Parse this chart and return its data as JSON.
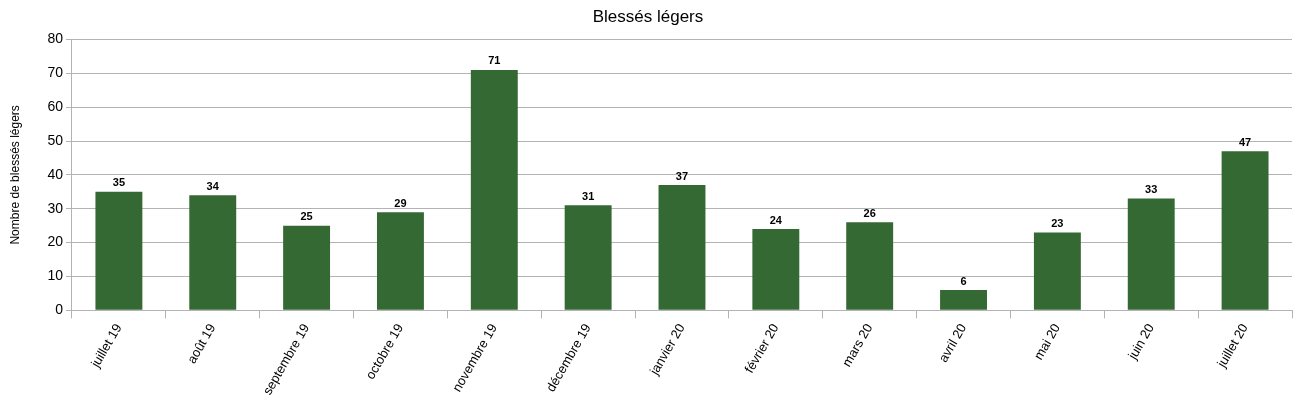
{
  "chart_data": {
    "type": "bar",
    "title": "Blessés légers",
    "ylabel": "Nombre de blessés légers",
    "categories": [
      "juillet 19",
      "août 19",
      "septembre 19",
      "octobre 19",
      "novembre 19",
      "décembre 19",
      "janvier 20",
      "février 20",
      "mars 20",
      "avril 20",
      "mai 20",
      "juin 20",
      "juillet 20"
    ],
    "values": [
      35,
      34,
      25,
      29,
      71,
      31,
      37,
      24,
      26,
      6,
      23,
      33,
      47
    ],
    "color": "#356934",
    "ylim": [
      0,
      80
    ],
    "yticks": [
      0,
      10,
      20,
      30,
      40,
      50,
      60,
      70,
      80
    ],
    "grid": "y",
    "legend": false,
    "data_labels": true
  }
}
